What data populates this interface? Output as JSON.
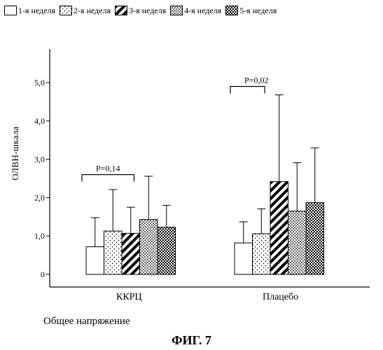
{
  "chart_data": {
    "type": "bar",
    "ylabel": "ОЛВН-шкала",
    "xlabel": "Общее напряжение",
    "caption": "ФИГ. 7",
    "yticks": [
      "0",
      "1,0",
      "2,0",
      "3,0",
      "4,0",
      "5,0"
    ],
    "ylim": [
      0,
      5
    ],
    "grid": false,
    "legend_position": "top",
    "categories": [
      "ККРЦ",
      "Плацебо"
    ],
    "series": [
      {
        "name": "1-я неделя",
        "pattern": "blank",
        "values": [
          0.72,
          0.82
        ],
        "errors": [
          0.76,
          0.55
        ]
      },
      {
        "name": "2-я неделя",
        "pattern": "dots",
        "values": [
          1.13,
          1.06
        ],
        "errors": [
          1.08,
          0.65
        ]
      },
      {
        "name": "3-я неделя",
        "pattern": "diagonal",
        "values": [
          1.07,
          2.42
        ],
        "errors": [
          0.68,
          2.26
        ]
      },
      {
        "name": "4-я неделя",
        "pattern": "dense-dots",
        "values": [
          1.43,
          1.65
        ],
        "errors": [
          1.13,
          1.26
        ]
      },
      {
        "name": "5-я неделя",
        "pattern": "checker",
        "values": [
          1.23,
          1.87
        ],
        "errors": [
          0.57,
          1.43
        ]
      }
    ],
    "annotations": [
      {
        "text": "P=0,14",
        "category": "ККРЦ",
        "from_series": 0,
        "to_series": 3,
        "y": 2.6
      },
      {
        "text": "P=0,02",
        "category": "Плацебо",
        "from_series": 0,
        "to_series": 2,
        "y": 4.9
      }
    ]
  }
}
